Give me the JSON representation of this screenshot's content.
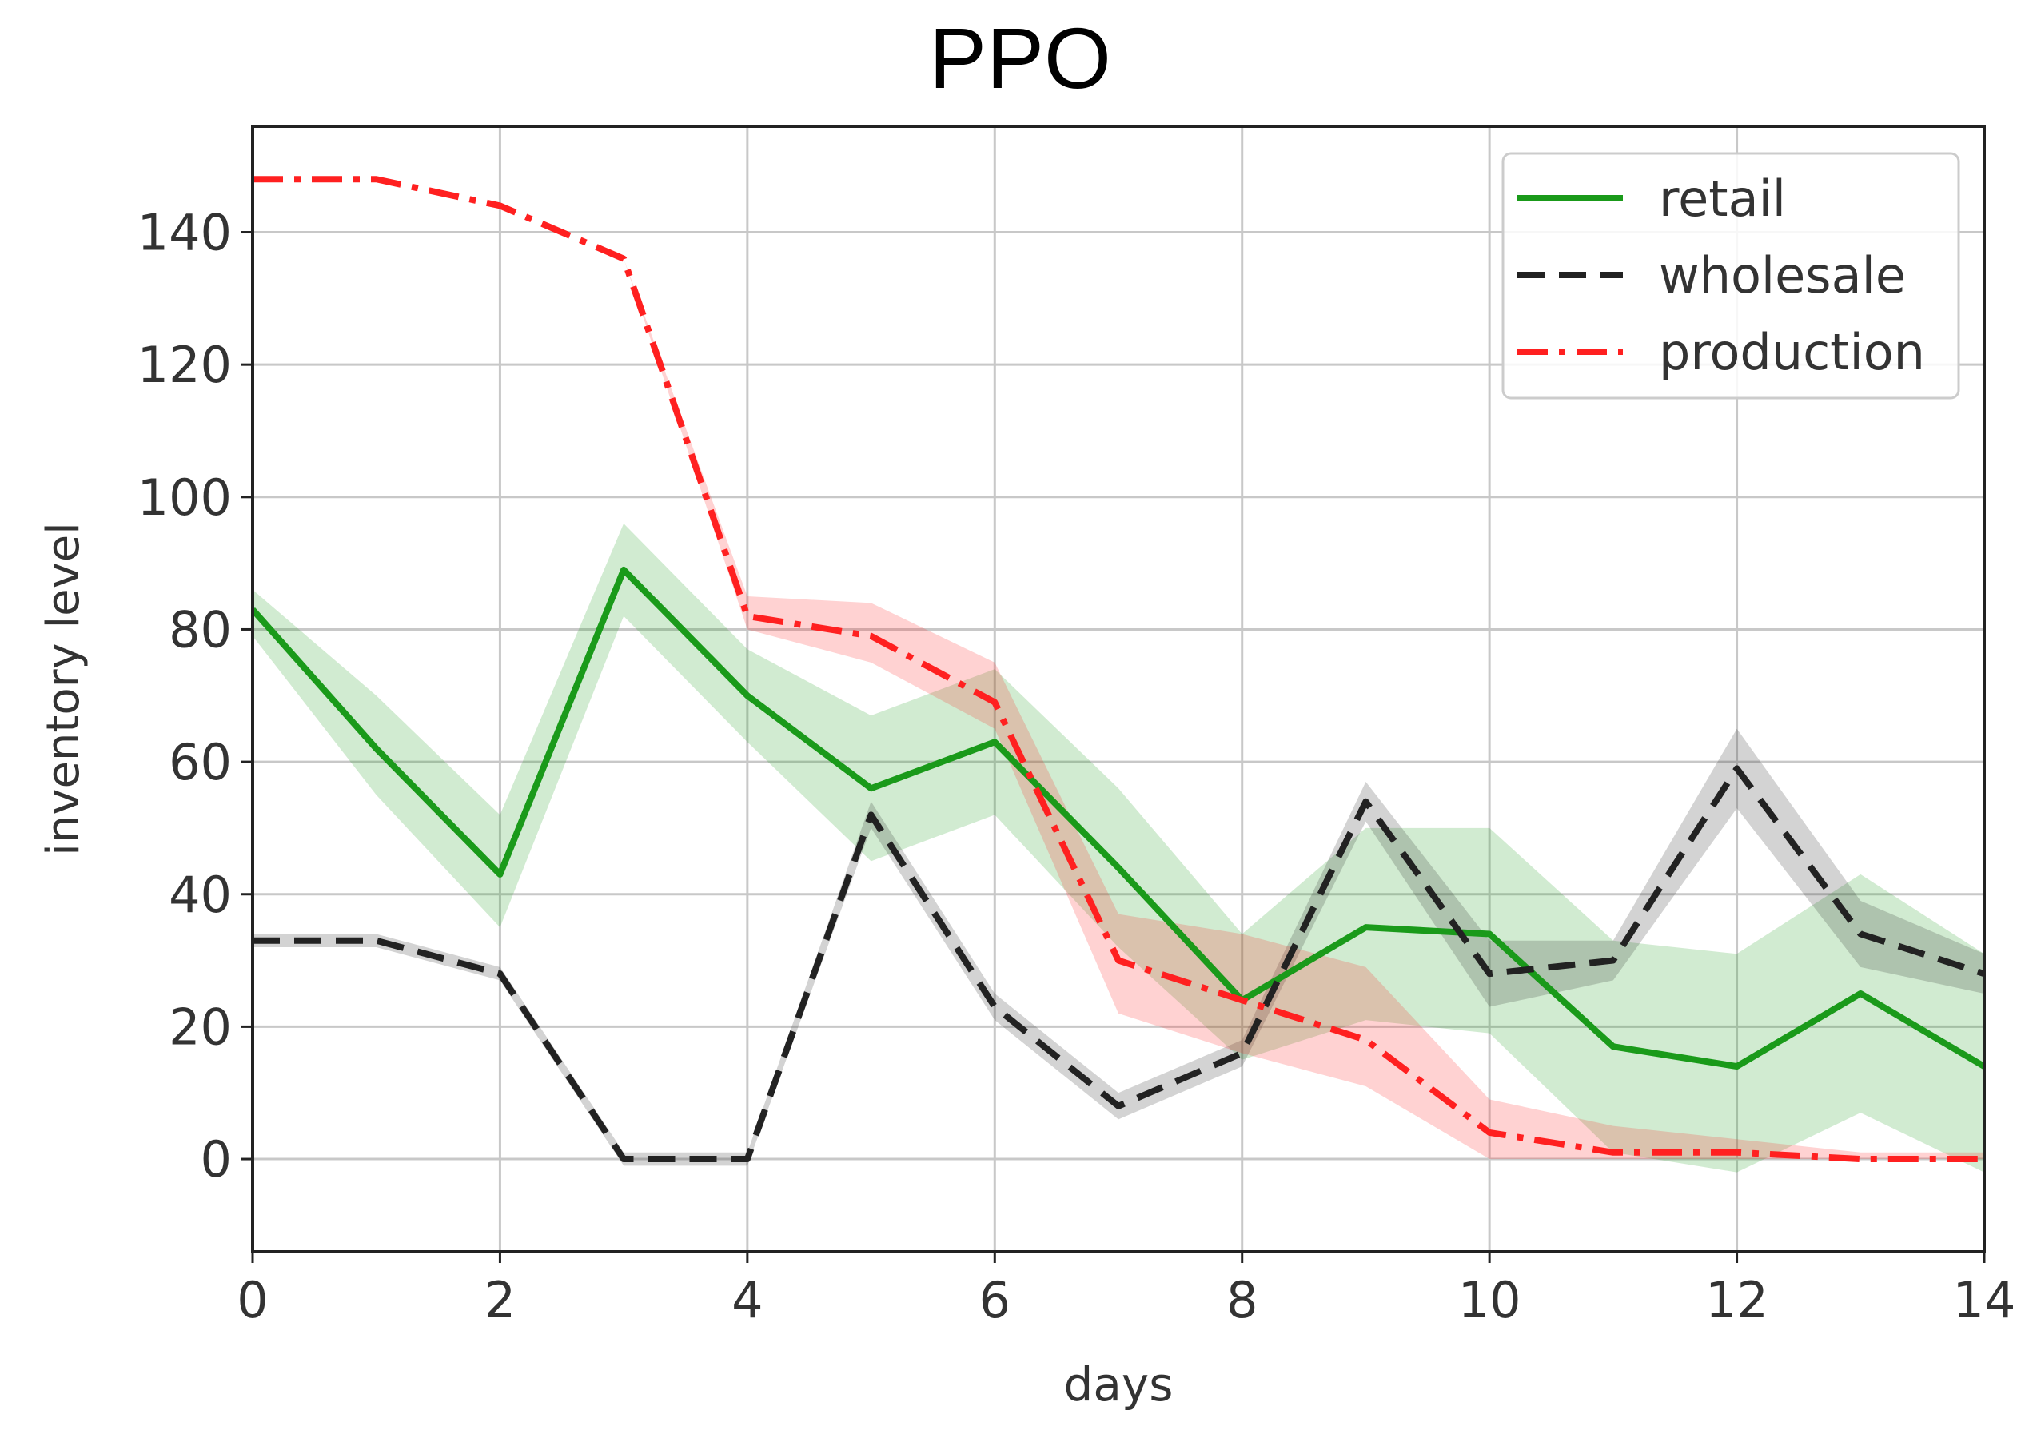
{
  "chart_data": {
    "type": "line",
    "title": "PPO",
    "xlabel": "days",
    "ylabel": "inventory level",
    "xlim": [
      0,
      14
    ],
    "ylim": [
      -14,
      156
    ],
    "grid": true,
    "x_ticks": [
      "0",
      "2",
      "4",
      "6",
      "8",
      "10",
      "12",
      "14"
    ],
    "y_ticks": [
      "0",
      "20",
      "40",
      "60",
      "80",
      "100",
      "120",
      "140"
    ],
    "legend_position": "top-right",
    "x": [
      0,
      1,
      2,
      3,
      4,
      5,
      6,
      7,
      8,
      9,
      10,
      11,
      12,
      13,
      14
    ],
    "series": [
      {
        "name": "retail",
        "color": "#1a9a1a",
        "style": "solid",
        "values": [
          83,
          62,
          43,
          89,
          70,
          56,
          63,
          44,
          24,
          35,
          34,
          17,
          14,
          25,
          14
        ],
        "lower": [
          79,
          55,
          35,
          82,
          63,
          45,
          52,
          32,
          15,
          21,
          19,
          1,
          -2,
          7,
          -2
        ],
        "upper": [
          86,
          70,
          52,
          96,
          77,
          67,
          74,
          56,
          34,
          50,
          50,
          33,
          31,
          43,
          31
        ]
      },
      {
        "name": "wholesale",
        "color": "#222222",
        "style": "dashed",
        "values": [
          33,
          33,
          28,
          0,
          0,
          52,
          23,
          8,
          16,
          54,
          28,
          30,
          59,
          34,
          28
        ],
        "lower": [
          32,
          32,
          27,
          -1,
          -1,
          50,
          21,
          6,
          14,
          51,
          23,
          27,
          53,
          29,
          25
        ],
        "upper": [
          34,
          34,
          29,
          1,
          1,
          54,
          25,
          10,
          18,
          57,
          33,
          33,
          65,
          39,
          31
        ]
      },
      {
        "name": "production",
        "color": "#ff2020",
        "style": "dashdot",
        "values": [
          148,
          148,
          144,
          136,
          82,
          79,
          69,
          30,
          24,
          18,
          4,
          1,
          1,
          0,
          0
        ],
        "lower": [
          148,
          148,
          144,
          136,
          80,
          75,
          65,
          22,
          16,
          11,
          0,
          0,
          0,
          0,
          0
        ],
        "upper": [
          148,
          148,
          144,
          136,
          85,
          84,
          75,
          37,
          34,
          29,
          9,
          5,
          3,
          1,
          1
        ]
      }
    ]
  }
}
